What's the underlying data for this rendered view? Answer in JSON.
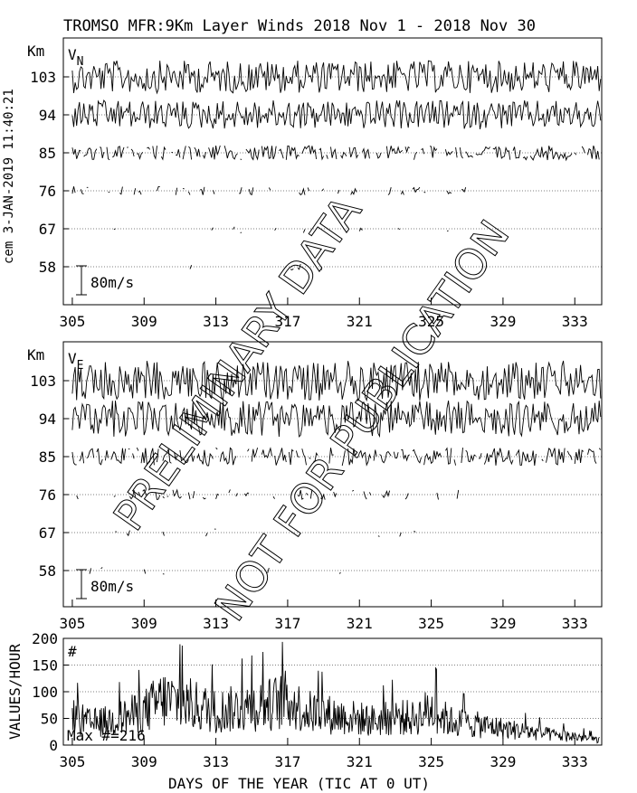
{
  "title": "TROMSO MFR:9Km Layer Winds 2018 Nov  1 - 2018 Nov 30",
  "side_label": "cem 3-JAN-2019 11:40:21",
  "watermark": [
    "PRELIMINARY DATA",
    "NOT FOR PUBLICATION"
  ],
  "xaxis_title": "DAYS OF THE YEAR (TIC AT 0 UT)",
  "colors": {
    "foreground": "#000000",
    "background": "#ffffff"
  },
  "chart_data": [
    {
      "type": "line",
      "panel_label": "V",
      "panel_subscript": "N",
      "unit_label": "Km",
      "scale_label": "80m/s",
      "scale_ms": 80,
      "xlim": [
        304.5,
        334.5
      ],
      "x_ticks": [
        "305",
        "309",
        "313",
        "317",
        "321",
        "325",
        "329",
        "333"
      ],
      "altitudes_km": [
        "103",
        "94",
        "85",
        "76",
        "67",
        "58"
      ],
      "series": [
        {
          "name": "103",
          "coverage_days": [
            305,
            334.5
          ],
          "amplitude_ms": 45,
          "density": 1.0
        },
        {
          "name": "94",
          "coverage_days": [
            305,
            334.5
          ],
          "amplitude_ms": 40,
          "density": 1.0
        },
        {
          "name": "85",
          "coverage_days": [
            305,
            334.5
          ],
          "amplitude_ms": 20,
          "density": 0.8
        },
        {
          "name": "76",
          "coverage_days": [
            305,
            327
          ],
          "amplitude_ms": 12,
          "density": 0.45
        },
        {
          "name": "67",
          "coverage_days": [
            305,
            326
          ],
          "amplitude_ms": 12,
          "density": 0.2
        },
        {
          "name": "58",
          "coverage_days": [
            305,
            320
          ],
          "amplitude_ms": 10,
          "density": 0.15
        }
      ],
      "grid": true
    },
    {
      "type": "line",
      "panel_label": "V",
      "panel_subscript": "E",
      "unit_label": "Km",
      "scale_label": "80m/s",
      "scale_ms": 80,
      "xlim": [
        304.5,
        334.5
      ],
      "x_ticks": [
        "305",
        "309",
        "313",
        "317",
        "321",
        "325",
        "329",
        "333"
      ],
      "altitudes_km": [
        "103",
        "94",
        "85",
        "76",
        "67",
        "58"
      ],
      "series": [
        {
          "name": "103",
          "coverage_days": [
            305,
            334.5
          ],
          "amplitude_ms": 55,
          "density": 1.0
        },
        {
          "name": "94",
          "coverage_days": [
            305,
            334.5
          ],
          "amplitude_ms": 50,
          "density": 1.0
        },
        {
          "name": "85",
          "coverage_days": [
            305,
            334.5
          ],
          "amplitude_ms": 25,
          "density": 0.85
        },
        {
          "name": "76",
          "coverage_days": [
            305,
            327
          ],
          "amplitude_ms": 14,
          "density": 0.45
        },
        {
          "name": "67",
          "coverage_days": [
            305,
            326
          ],
          "amplitude_ms": 12,
          "density": 0.2
        },
        {
          "name": "58",
          "coverage_days": [
            305,
            320
          ],
          "amplitude_ms": 10,
          "density": 0.15
        }
      ],
      "grid": true
    },
    {
      "type": "line",
      "panel_label": "#",
      "ylabel": "VALUES/HOUR",
      "annotation": "Max #=216",
      "xlim": [
        304.5,
        334.5
      ],
      "ylim": [
        0,
        200
      ],
      "y_ticks": [
        "0",
        "50",
        "100",
        "150",
        "200"
      ],
      "x_ticks": [
        "305",
        "309",
        "313",
        "317",
        "321",
        "325",
        "329",
        "333"
      ],
      "profile_days": [
        305,
        306,
        307,
        308,
        309,
        310,
        311,
        312,
        313,
        314,
        315,
        316,
        317,
        318,
        319,
        320,
        321,
        322,
        323,
        324,
        325,
        326,
        327,
        328,
        329,
        330,
        331,
        332,
        333,
        334
      ],
      "profile_values": [
        60,
        45,
        50,
        60,
        70,
        95,
        90,
        80,
        70,
        75,
        80,
        85,
        95,
        70,
        65,
        60,
        55,
        50,
        60,
        55,
        75,
        50,
        45,
        40,
        35,
        30,
        25,
        20,
        18,
        12
      ],
      "grid": true
    }
  ]
}
